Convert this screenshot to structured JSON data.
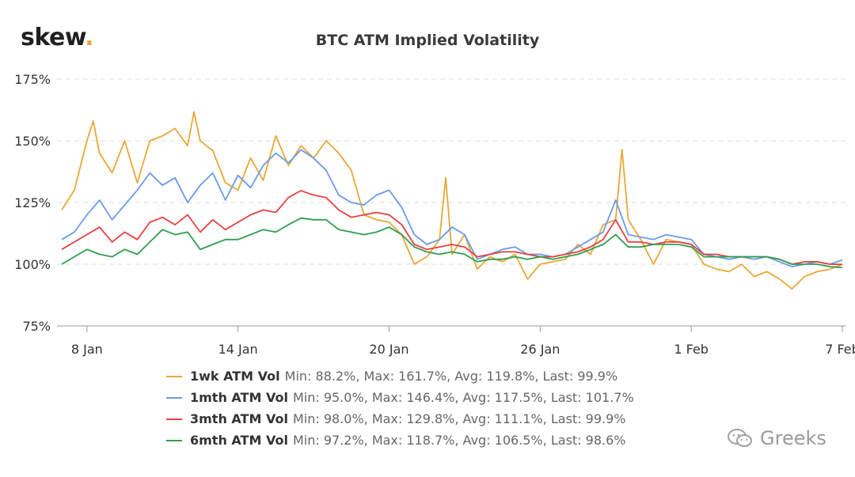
{
  "brand": {
    "logo_text": "skew",
    "logo_dot": "."
  },
  "watermark": {
    "text": "Greeks",
    "icon": "wechat-icon"
  },
  "chart_data": {
    "type": "line",
    "title": "BTC ATM Implied Volatility",
    "xlabel": "",
    "ylabel": "",
    "ylim": [
      75,
      175
    ],
    "y_ticks": [
      {
        "value": 75,
        "label": "75%"
      },
      {
        "value": 100,
        "label": "100%"
      },
      {
        "value": 125,
        "label": "125%"
      },
      {
        "value": 150,
        "label": "150%"
      },
      {
        "value": 175,
        "label": "175%"
      }
    ],
    "x_domain": [
      "2020-01-07",
      "2020-02-07"
    ],
    "x_ticks": [
      {
        "date": "2020-01-08",
        "label": "8 Jan"
      },
      {
        "date": "2020-01-14",
        "label": "14 Jan"
      },
      {
        "date": "2020-01-20",
        "label": "20 Jan"
      },
      {
        "date": "2020-01-26",
        "label": "26 Jan"
      },
      {
        "date": "2020-02-01",
        "label": "1 Feb"
      },
      {
        "date": "2020-02-07",
        "label": "7 Feb"
      }
    ],
    "grid": true,
    "legend_position": "bottom",
    "series": [
      {
        "name": "1wk ATM Vol",
        "stats": "Min: 88.2%, Max: 161.7%, Avg: 119.8%, Last: 99.9%",
        "color": "#e8a838",
        "points": [
          [
            "2020-01-07",
            122
          ],
          [
            "2020-01-07 12:00",
            130
          ],
          [
            "2020-01-08",
            150
          ],
          [
            "2020-01-08 06:00",
            158
          ],
          [
            "2020-01-08 12:00",
            145
          ],
          [
            "2020-01-09",
            137
          ],
          [
            "2020-01-09 12:00",
            150
          ],
          [
            "2020-01-10",
            133
          ],
          [
            "2020-01-10 12:00",
            150
          ],
          [
            "2020-01-11",
            152
          ],
          [
            "2020-01-11 12:00",
            155
          ],
          [
            "2020-01-12",
            148
          ],
          [
            "2020-01-12 06:00",
            161.7
          ],
          [
            "2020-01-12 12:00",
            150
          ],
          [
            "2020-01-13",
            146
          ],
          [
            "2020-01-13 12:00",
            133
          ],
          [
            "2020-01-14",
            130
          ],
          [
            "2020-01-14 12:00",
            143
          ],
          [
            "2020-01-15",
            134
          ],
          [
            "2020-01-15 12:00",
            152
          ],
          [
            "2020-01-16",
            140
          ],
          [
            "2020-01-16 12:00",
            148
          ],
          [
            "2020-01-17",
            143
          ],
          [
            "2020-01-17 12:00",
            150
          ],
          [
            "2020-01-18",
            145
          ],
          [
            "2020-01-18 12:00",
            138
          ],
          [
            "2020-01-19",
            120
          ],
          [
            "2020-01-19 12:00",
            118
          ],
          [
            "2020-01-20",
            117
          ],
          [
            "2020-01-20 12:00",
            112
          ],
          [
            "2020-01-21",
            100
          ],
          [
            "2020-01-21 12:00",
            103
          ],
          [
            "2020-01-22",
            110
          ],
          [
            "2020-01-22 06:00",
            135
          ],
          [
            "2020-01-22 12:00",
            104
          ],
          [
            "2020-01-23",
            112
          ],
          [
            "2020-01-23 12:00",
            98
          ],
          [
            "2020-01-24",
            103
          ],
          [
            "2020-01-24 12:00",
            101
          ],
          [
            "2020-01-25",
            104
          ],
          [
            "2020-01-25 12:00",
            94
          ],
          [
            "2020-01-26",
            100
          ],
          [
            "2020-01-26 12:00",
            101
          ],
          [
            "2020-01-27",
            102
          ],
          [
            "2020-01-27 12:00",
            108
          ],
          [
            "2020-01-28",
            104
          ],
          [
            "2020-01-28 12:00",
            116
          ],
          [
            "2020-01-29",
            118
          ],
          [
            "2020-01-29 06:00",
            146.4
          ],
          [
            "2020-01-29 12:00",
            118
          ],
          [
            "2020-01-30",
            110
          ],
          [
            "2020-01-30 12:00",
            100
          ],
          [
            "2020-01-31",
            110
          ],
          [
            "2020-01-31 12:00",
            109
          ],
          [
            "2020-02-01",
            108
          ],
          [
            "2020-02-01 12:00",
            100
          ],
          [
            "2020-02-02",
            98
          ],
          [
            "2020-02-02 12:00",
            97
          ],
          [
            "2020-02-03",
            100
          ],
          [
            "2020-02-03 12:00",
            95
          ],
          [
            "2020-02-04",
            97
          ],
          [
            "2020-02-04 12:00",
            94
          ],
          [
            "2020-02-05",
            90
          ],
          [
            "2020-02-05 12:00",
            95
          ],
          [
            "2020-02-06",
            97
          ],
          [
            "2020-02-06 12:00",
            98
          ],
          [
            "2020-02-07",
            99.9
          ]
        ]
      },
      {
        "name": "1mth ATM Vol",
        "stats": "Min: 95.0%, Max: 146.4%, Avg: 117.5%, Last: 101.7%",
        "color": "#6a9be8",
        "points": [
          [
            "2020-01-07",
            110
          ],
          [
            "2020-01-07 12:00",
            113
          ],
          [
            "2020-01-08",
            120
          ],
          [
            "2020-01-08 12:00",
            126
          ],
          [
            "2020-01-09",
            118
          ],
          [
            "2020-01-09 12:00",
            124
          ],
          [
            "2020-01-10",
            130
          ],
          [
            "2020-01-10 12:00",
            137
          ],
          [
            "2020-01-11",
            132
          ],
          [
            "2020-01-11 12:00",
            135
          ],
          [
            "2020-01-12",
            125
          ],
          [
            "2020-01-12 12:00",
            132
          ],
          [
            "2020-01-13",
            137
          ],
          [
            "2020-01-13 12:00",
            126
          ],
          [
            "2020-01-14",
            136
          ],
          [
            "2020-01-14 12:00",
            131
          ],
          [
            "2020-01-15",
            140
          ],
          [
            "2020-01-15 12:00",
            145
          ],
          [
            "2020-01-16",
            141
          ],
          [
            "2020-01-16 12:00",
            146.4
          ],
          [
            "2020-01-17",
            143
          ],
          [
            "2020-01-17 12:00",
            138
          ],
          [
            "2020-01-18",
            128
          ],
          [
            "2020-01-18 12:00",
            125
          ],
          [
            "2020-01-19",
            124
          ],
          [
            "2020-01-19 12:00",
            128
          ],
          [
            "2020-01-20",
            130
          ],
          [
            "2020-01-20 12:00",
            123
          ],
          [
            "2020-01-21",
            112
          ],
          [
            "2020-01-21 12:00",
            108
          ],
          [
            "2020-01-22",
            110
          ],
          [
            "2020-01-22 12:00",
            115
          ],
          [
            "2020-01-23",
            112
          ],
          [
            "2020-01-23 12:00",
            102
          ],
          [
            "2020-01-24",
            104
          ],
          [
            "2020-01-24 12:00",
            106
          ],
          [
            "2020-01-25",
            107
          ],
          [
            "2020-01-25 12:00",
            104
          ],
          [
            "2020-01-26",
            104
          ],
          [
            "2020-01-26 12:00",
            103
          ],
          [
            "2020-01-27",
            104
          ],
          [
            "2020-01-27 12:00",
            107
          ],
          [
            "2020-01-28",
            110
          ],
          [
            "2020-01-28 12:00",
            113
          ],
          [
            "2020-01-29",
            126
          ],
          [
            "2020-01-29 12:00",
            112
          ],
          [
            "2020-01-30",
            111
          ],
          [
            "2020-01-30 12:00",
            110
          ],
          [
            "2020-01-31",
            112
          ],
          [
            "2020-01-31 12:00",
            111
          ],
          [
            "2020-02-01",
            110
          ],
          [
            "2020-02-01 12:00",
            104
          ],
          [
            "2020-02-02",
            103
          ],
          [
            "2020-02-02 12:00",
            102
          ],
          [
            "2020-02-03",
            103
          ],
          [
            "2020-02-03 12:00",
            102
          ],
          [
            "2020-02-04",
            103
          ],
          [
            "2020-02-04 12:00",
            101
          ],
          [
            "2020-02-05",
            99
          ],
          [
            "2020-02-05 12:00",
            100
          ],
          [
            "2020-02-06",
            101
          ],
          [
            "2020-02-06 12:00",
            100
          ],
          [
            "2020-02-07",
            101.7
          ]
        ]
      },
      {
        "name": "3mth ATM Vol",
        "stats": "Min: 98.0%, Max: 129.8%, Avg: 111.1%, Last: 99.9%",
        "color": "#e84040",
        "points": [
          [
            "2020-01-07",
            106
          ],
          [
            "2020-01-07 12:00",
            109
          ],
          [
            "2020-01-08",
            112
          ],
          [
            "2020-01-08 12:00",
            115
          ],
          [
            "2020-01-09",
            109
          ],
          [
            "2020-01-09 12:00",
            113
          ],
          [
            "2020-01-10",
            110
          ],
          [
            "2020-01-10 12:00",
            117
          ],
          [
            "2020-01-11",
            119
          ],
          [
            "2020-01-11 12:00",
            116
          ],
          [
            "2020-01-12",
            120
          ],
          [
            "2020-01-12 12:00",
            113
          ],
          [
            "2020-01-13",
            118
          ],
          [
            "2020-01-13 12:00",
            114
          ],
          [
            "2020-01-14",
            117
          ],
          [
            "2020-01-14 12:00",
            120
          ],
          [
            "2020-01-15",
            122
          ],
          [
            "2020-01-15 12:00",
            121
          ],
          [
            "2020-01-16",
            127
          ],
          [
            "2020-01-16 12:00",
            129.8
          ],
          [
            "2020-01-17",
            128
          ],
          [
            "2020-01-17 12:00",
            127
          ],
          [
            "2020-01-18",
            122
          ],
          [
            "2020-01-18 12:00",
            119
          ],
          [
            "2020-01-19",
            120
          ],
          [
            "2020-01-19 12:00",
            121
          ],
          [
            "2020-01-20",
            120
          ],
          [
            "2020-01-20 12:00",
            116
          ],
          [
            "2020-01-21",
            108
          ],
          [
            "2020-01-21 12:00",
            106
          ],
          [
            "2020-01-22",
            107
          ],
          [
            "2020-01-22 12:00",
            108
          ],
          [
            "2020-01-23",
            107
          ],
          [
            "2020-01-23 12:00",
            103
          ],
          [
            "2020-01-24",
            104
          ],
          [
            "2020-01-24 12:00",
            105
          ],
          [
            "2020-01-25",
            105
          ],
          [
            "2020-01-25 12:00",
            104
          ],
          [
            "2020-01-26",
            103
          ],
          [
            "2020-01-26 12:00",
            103
          ],
          [
            "2020-01-27",
            104
          ],
          [
            "2020-01-27 12:00",
            105
          ],
          [
            "2020-01-28",
            107
          ],
          [
            "2020-01-28 12:00",
            110
          ],
          [
            "2020-01-29",
            118
          ],
          [
            "2020-01-29 12:00",
            109
          ],
          [
            "2020-01-30",
            109
          ],
          [
            "2020-01-30 12:00",
            108
          ],
          [
            "2020-01-31",
            109
          ],
          [
            "2020-01-31 12:00",
            109
          ],
          [
            "2020-02-01",
            108
          ],
          [
            "2020-02-01 12:00",
            104
          ],
          [
            "2020-02-02",
            104
          ],
          [
            "2020-02-02 12:00",
            103
          ],
          [
            "2020-02-03",
            103
          ],
          [
            "2020-02-03 12:00",
            103
          ],
          [
            "2020-02-04",
            103
          ],
          [
            "2020-02-04 12:00",
            102
          ],
          [
            "2020-02-05",
            100
          ],
          [
            "2020-02-05 12:00",
            101
          ],
          [
            "2020-02-06",
            101
          ],
          [
            "2020-02-06 12:00",
            100
          ],
          [
            "2020-02-07",
            99.9
          ]
        ]
      },
      {
        "name": "6mth ATM Vol",
        "stats": "Min: 97.2%, Max: 118.7%, Avg: 106.5%, Last: 98.6%",
        "color": "#2e9e4f",
        "points": [
          [
            "2020-01-07",
            100
          ],
          [
            "2020-01-07 12:00",
            103
          ],
          [
            "2020-01-08",
            106
          ],
          [
            "2020-01-08 12:00",
            104
          ],
          [
            "2020-01-09",
            103
          ],
          [
            "2020-01-09 12:00",
            106
          ],
          [
            "2020-01-10",
            104
          ],
          [
            "2020-01-10 12:00",
            109
          ],
          [
            "2020-01-11",
            114
          ],
          [
            "2020-01-11 12:00",
            112
          ],
          [
            "2020-01-12",
            113
          ],
          [
            "2020-01-12 12:00",
            106
          ],
          [
            "2020-01-13",
            108
          ],
          [
            "2020-01-13 12:00",
            110
          ],
          [
            "2020-01-14",
            110
          ],
          [
            "2020-01-14 12:00",
            112
          ],
          [
            "2020-01-15",
            114
          ],
          [
            "2020-01-15 12:00",
            113
          ],
          [
            "2020-01-16",
            116
          ],
          [
            "2020-01-16 12:00",
            118.7
          ],
          [
            "2020-01-17",
            118
          ],
          [
            "2020-01-17 12:00",
            118
          ],
          [
            "2020-01-18",
            114
          ],
          [
            "2020-01-18 12:00",
            113
          ],
          [
            "2020-01-19",
            112
          ],
          [
            "2020-01-19 12:00",
            113
          ],
          [
            "2020-01-20",
            115
          ],
          [
            "2020-01-20 12:00",
            112
          ],
          [
            "2020-01-21",
            107
          ],
          [
            "2020-01-21 12:00",
            105
          ],
          [
            "2020-01-22",
            104
          ],
          [
            "2020-01-22 12:00",
            105
          ],
          [
            "2020-01-23",
            104
          ],
          [
            "2020-01-23 12:00",
            101
          ],
          [
            "2020-01-24",
            102
          ],
          [
            "2020-01-24 12:00",
            102
          ],
          [
            "2020-01-25",
            103
          ],
          [
            "2020-01-25 12:00",
            102
          ],
          [
            "2020-01-26",
            103
          ],
          [
            "2020-01-26 12:00",
            102
          ],
          [
            "2020-01-27",
            103
          ],
          [
            "2020-01-27 12:00",
            104
          ],
          [
            "2020-01-28",
            106
          ],
          [
            "2020-01-28 12:00",
            108
          ],
          [
            "2020-01-29",
            112
          ],
          [
            "2020-01-29 12:00",
            107
          ],
          [
            "2020-01-30",
            107
          ],
          [
            "2020-01-30 12:00",
            108
          ],
          [
            "2020-01-31",
            108
          ],
          [
            "2020-01-31 12:00",
            108
          ],
          [
            "2020-02-01",
            107
          ],
          [
            "2020-02-01 12:00",
            103
          ],
          [
            "2020-02-02",
            103
          ],
          [
            "2020-02-02 12:00",
            103
          ],
          [
            "2020-02-03",
            103
          ],
          [
            "2020-02-03 12:00",
            103
          ],
          [
            "2020-02-04",
            103
          ],
          [
            "2020-02-04 12:00",
            102
          ],
          [
            "2020-02-05",
            100
          ],
          [
            "2020-02-05 12:00",
            100
          ],
          [
            "2020-02-06",
            100
          ],
          [
            "2020-02-06 12:00",
            99
          ],
          [
            "2020-02-07",
            98.6
          ]
        ]
      }
    ]
  }
}
